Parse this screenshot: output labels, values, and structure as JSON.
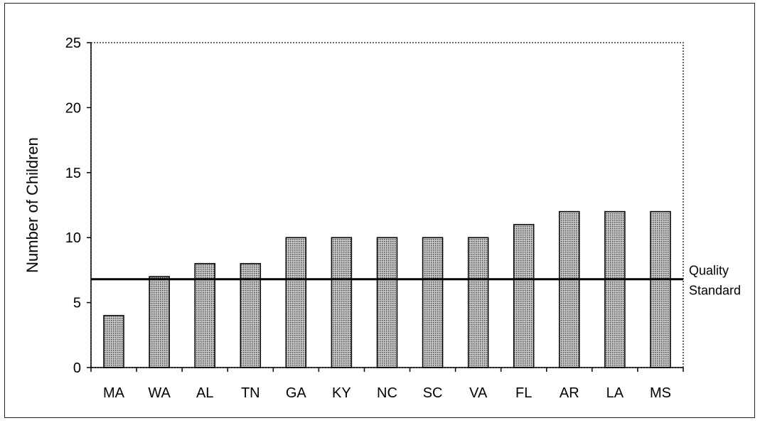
{
  "chart_data": {
    "type": "bar",
    "categories": [
      "MA",
      "WA",
      "AL",
      "TN",
      "GA",
      "KY",
      "NC",
      "SC",
      "VA",
      "FL",
      "AR",
      "LA",
      "MS"
    ],
    "values": [
      4,
      7,
      8,
      8,
      10,
      10,
      10,
      10,
      10,
      11,
      12,
      12,
      12
    ],
    "ylabel": "Number of Children",
    "xlabel": "",
    "ylim": [
      0,
      25
    ],
    "yticks": [
      0,
      5,
      10,
      15,
      20,
      25
    ],
    "grid": false,
    "bar_color": "#8c8c8c",
    "reference_line": {
      "value": 6.8,
      "label_lines": [
        "Quality",
        "Standard"
      ],
      "color": "#000000"
    }
  }
}
